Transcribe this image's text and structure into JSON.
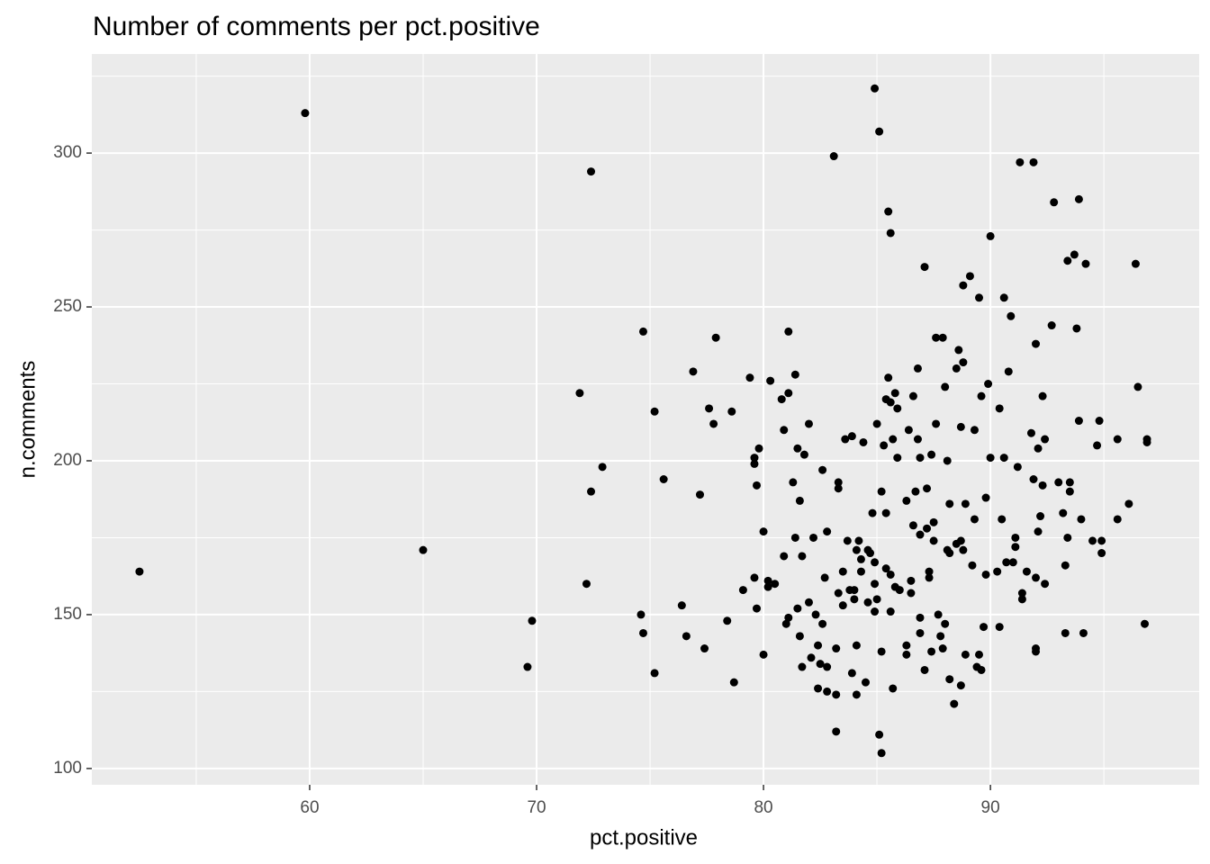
{
  "chart_data": {
    "type": "scatter",
    "title": "Number of comments per pct.positive",
    "x_label": "pct.positive",
    "y_label": "n.comments",
    "x": [
      52.5,
      59.8,
      65.0,
      69.6,
      69.8,
      71.9,
      72.2,
      72.4,
      72.4,
      72.9,
      74.6,
      74.7,
      74.7,
      75.2,
      75.2,
      75.6,
      76.4,
      76.6,
      76.9,
      77.2,
      77.4,
      77.6,
      77.8,
      77.9,
      78.4,
      78.6,
      78.7,
      79.1,
      79.4,
      79.6,
      79.6,
      79.6,
      79.7,
      79.7,
      79.8,
      80.0,
      80.0,
      80.2,
      80.2,
      80.3,
      80.5,
      80.8,
      80.9,
      80.9,
      81.0,
      81.1,
      81.1,
      81.1,
      81.3,
      81.4,
      81.4,
      81.5,
      81.5,
      81.6,
      81.6,
      81.7,
      81.7,
      81.8,
      82.0,
      82.0,
      82.1,
      82.2,
      82.3,
      82.4,
      82.4,
      82.5,
      82.6,
      82.6,
      82.8,
      82.8,
      82.8,
      82.7,
      83.1,
      83.2,
      83.2,
      83.2,
      83.3,
      83.3,
      83.3,
      83.5,
      83.5,
      83.6,
      83.7,
      83.8,
      83.9,
      83.9,
      84.0,
      84.0,
      84.1,
      84.1,
      84.1,
      84.2,
      84.3,
      84.3,
      84.4,
      84.5,
      84.6,
      84.6,
      84.7,
      84.8,
      84.9,
      84.9,
      84.9,
      84.9,
      85.0,
      85.0,
      85.1,
      85.1,
      85.2,
      85.2,
      85.2,
      85.3,
      85.4,
      85.4,
      85.4,
      85.5,
      85.5,
      85.6,
      85.6,
      85.6,
      85.6,
      85.7,
      85.7,
      85.8,
      85.8,
      85.9,
      85.9,
      86.0,
      86.3,
      86.3,
      86.3,
      86.4,
      86.5,
      86.5,
      86.6,
      86.6,
      86.7,
      86.8,
      86.8,
      86.9,
      86.9,
      86.9,
      86.9,
      87.1,
      87.1,
      87.2,
      87.2,
      87.3,
      87.3,
      87.4,
      87.4,
      87.5,
      87.5,
      87.6,
      87.6,
      87.7,
      87.8,
      87.9,
      87.9,
      88.0,
      88.0,
      88.1,
      88.1,
      88.2,
      88.2,
      88.2,
      88.4,
      88.5,
      88.5,
      88.6,
      88.7,
      88.7,
      88.7,
      88.8,
      88.8,
      88.8,
      88.9,
      88.9,
      89.1,
      89.2,
      89.3,
      89.3,
      89.4,
      89.5,
      89.5,
      89.6,
      89.6,
      89.7,
      89.8,
      89.8,
      89.9,
      90.0,
      90.0,
      90.3,
      90.4,
      90.4,
      90.5,
      90.6,
      90.6,
      90.7,
      90.8,
      90.9,
      91.0,
      91.1,
      91.1,
      91.2,
      91.3,
      91.4,
      91.4,
      91.6,
      91.8,
      91.9,
      91.9,
      92.0,
      92.0,
      92.0,
      92.0,
      92.1,
      92.1,
      92.2,
      92.3,
      92.3,
      92.4,
      92.4,
      92.7,
      92.8,
      93.0,
      93.2,
      93.3,
      93.3,
      93.4,
      93.4,
      93.5,
      93.5,
      93.7,
      93.8,
      93.9,
      93.9,
      94.0,
      94.1,
      94.2,
      94.5,
      94.7,
      94.8,
      94.9,
      94.9,
      95.6,
      95.6,
      96.1,
      96.4,
      96.5,
      96.8,
      96.9,
      96.9
    ],
    "y": [
      164,
      313,
      171,
      133,
      148,
      222,
      160,
      190,
      294,
      198,
      150,
      242,
      144,
      216,
      131,
      194,
      153,
      143,
      229,
      189,
      139,
      217,
      212,
      240,
      148,
      216,
      128,
      158,
      227,
      201,
      199,
      162,
      152,
      192,
      204,
      177,
      137,
      161,
      159,
      226,
      160,
      220,
      169,
      210,
      147,
      149,
      242,
      222,
      193,
      228,
      175,
      204,
      152,
      187,
      143,
      133,
      169,
      202,
      212,
      154,
      136,
      175,
      150,
      140,
      126,
      134,
      147,
      197,
      177,
      133,
      125,
      162,
      299,
      139,
      124,
      112,
      193,
      191,
      157,
      164,
      153,
      207,
      174,
      158,
      208,
      131,
      155,
      158,
      140,
      171,
      124,
      174,
      164,
      168,
      206,
      128,
      154,
      171,
      170,
      183,
      151,
      160,
      321,
      167,
      155,
      212,
      111,
      307,
      138,
      190,
      105,
      205,
      165,
      183,
      220,
      227,
      281,
      274,
      163,
      219,
      151,
      207,
      126,
      159,
      222,
      217,
      201,
      158,
      140,
      137,
      187,
      210,
      161,
      157,
      221,
      179,
      190,
      230,
      207,
      201,
      149,
      144,
      176,
      263,
      132,
      191,
      178,
      164,
      162,
      138,
      202,
      174,
      180,
      212,
      240,
      150,
      143,
      240,
      139,
      147,
      224,
      171,
      200,
      186,
      129,
      170,
      121,
      230,
      173,
      236,
      127,
      211,
      174,
      232,
      257,
      171,
      137,
      186,
      260,
      166,
      181,
      210,
      133,
      253,
      137,
      132,
      221,
      146,
      163,
      188,
      225,
      201,
      273,
      164,
      146,
      217,
      181,
      253,
      201,
      167,
      229,
      247,
      167,
      175,
      172,
      198,
      297,
      155,
      157,
      164,
      209,
      194,
      297,
      162,
      238,
      139,
      138,
      204,
      177,
      182,
      192,
      221,
      207,
      160,
      244,
      284,
      193,
      183,
      144,
      166,
      175,
      265,
      193,
      190,
      267,
      243,
      285,
      213,
      181,
      144,
      264,
      174,
      205,
      213,
      174,
      170,
      181,
      207,
      186,
      264,
      224,
      147,
      206,
      207
    ],
    "xlim": [
      50.4,
      99.2
    ],
    "ylim": [
      94.7,
      332.2
    ],
    "xticks": [
      60,
      70,
      80,
      90
    ],
    "yticks": [
      100,
      150,
      200,
      250,
      300
    ],
    "grid": true,
    "color": "#000000"
  }
}
